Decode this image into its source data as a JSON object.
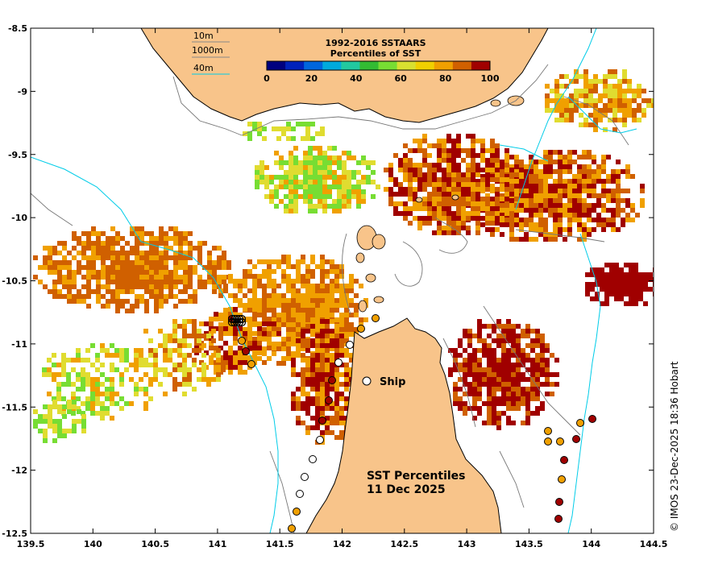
{
  "map": {
    "x_ticks": [
      "139.5",
      "140",
      "140.5",
      "141",
      "141.5",
      "142",
      "142.5",
      "143",
      "143.5",
      "144",
      "144.5"
    ],
    "y_ticks": [
      "-8.5",
      "-9",
      "-9.5",
      "-10",
      "-10.5",
      "-11",
      "-11.5",
      "-12",
      "-12.5"
    ],
    "lon_range": [
      139.5,
      144.5
    ],
    "lat_range": [
      -12.5,
      -8.5
    ]
  },
  "depth_legend": {
    "items": [
      {
        "label": "10m",
        "color": "#888888"
      },
      {
        "label": "1000m",
        "color": "#888888"
      },
      {
        "label": "40m",
        "color": "#00c8e8"
      }
    ]
  },
  "colorbar": {
    "title_line1": "1992-2016 SSTAARS",
    "title_line2": "Percentiles of SST",
    "tick_labels": [
      "0",
      "20",
      "40",
      "60",
      "80",
      "100"
    ],
    "colors": [
      "#00007f",
      "#0022bb",
      "#0066dd",
      "#00aadd",
      "#22c8a0",
      "#33bb33",
      "#77dd33",
      "#d8e030",
      "#f0d000",
      "#f0a000",
      "#d06000",
      "#a00000"
    ]
  },
  "annotations": {
    "ship_label": "Ship",
    "sst_title": "SST Percentiles",
    "date": "11 Dec 2025"
  },
  "copyright": "© IMOS 23-Dec-2025 18:36 Hobart",
  "colors": {
    "land": "#f8c48a",
    "contour_10m": "#777777",
    "contour_40m": "#00cce8",
    "percentile_80_100": "#a00000",
    "percentile_70_80": "#d06000",
    "percentile_60_70": "#f0a000",
    "percentile_50_60": "#e0dc30",
    "percentile_40_50": "#77dd33"
  }
}
